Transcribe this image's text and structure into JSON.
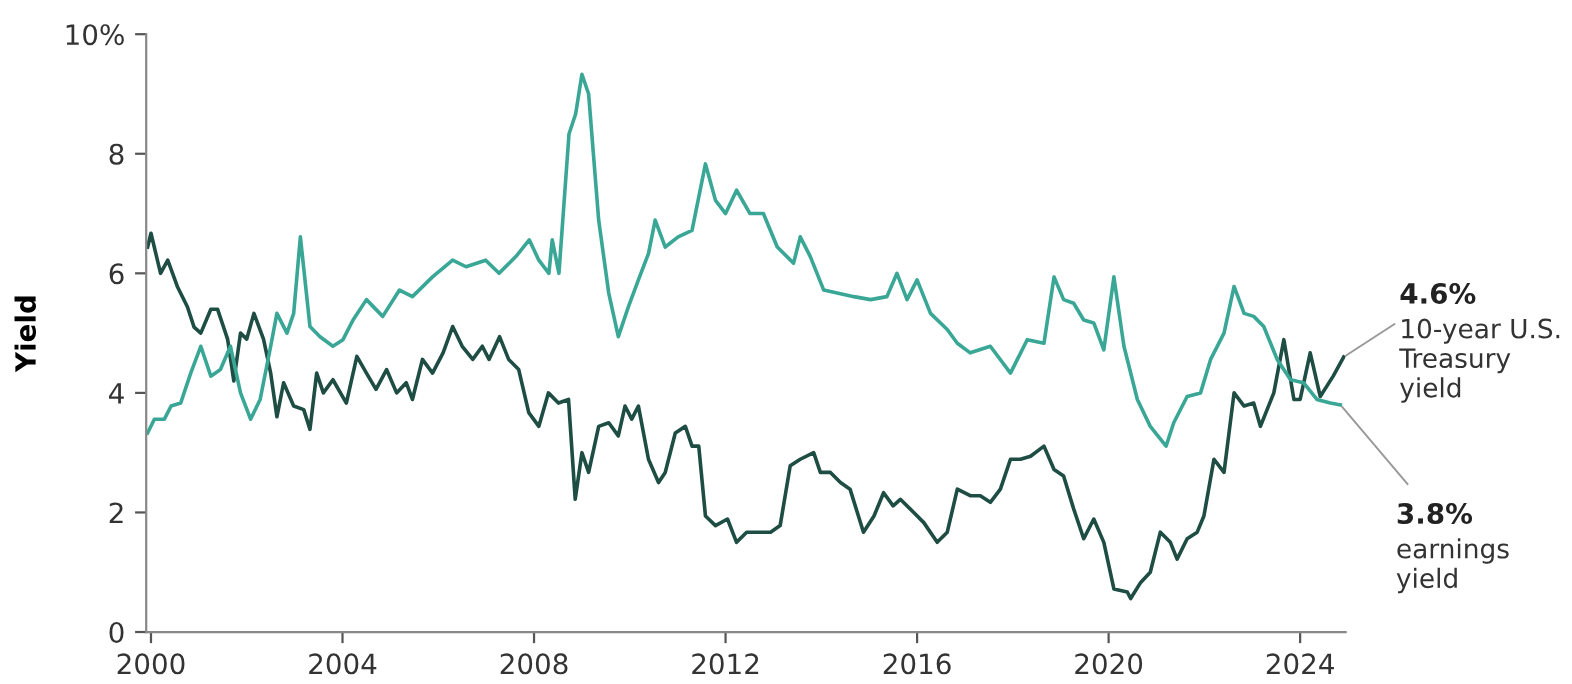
{
  "chart_data": {
    "type": "line",
    "ylabel": "Yield",
    "xlim": [
      1999.9,
      2024.95
    ],
    "ylim": [
      0,
      10
    ],
    "xticks": [
      2000,
      2004,
      2008,
      2012,
      2016,
      2020,
      2024
    ],
    "yticks": [
      0,
      2,
      4,
      6,
      8,
      {
        "value": 10,
        "label": "10%"
      }
    ],
    "grid": false,
    "legend": false,
    "marker": "none",
    "line_style": "solid",
    "annotations": [
      {
        "text": "4.6%",
        "x": 2024.91,
        "y": 4.6
      },
      {
        "text": "3.8%",
        "x": 2024.84,
        "y": 3.8
      }
    ],
    "series": [
      {
        "name": "10-year U.S. Treasury yield",
        "color": "#1e4d44",
        "x": [
          1999.93,
          2000.0,
          2000.2,
          2000.35,
          2000.55,
          2000.76,
          2000.9,
          2001.04,
          2001.25,
          2001.39,
          2001.6,
          2001.73,
          2001.87,
          2002.0,
          2002.15,
          2002.35,
          2002.5,
          2002.63,
          2002.77,
          2002.98,
          2003.19,
          2003.32,
          2003.46,
          2003.6,
          2003.8,
          2004.08,
          2004.3,
          2004.5,
          2004.7,
          2004.92,
          2005.13,
          2005.33,
          2005.46,
          2005.67,
          2005.88,
          2006.1,
          2006.3,
          2006.5,
          2006.72,
          2006.92,
          2007.06,
          2007.28,
          2007.47,
          2007.68,
          2007.89,
          2008.1,
          2008.3,
          2008.51,
          2008.72,
          2008.86,
          2009.0,
          2009.14,
          2009.35,
          2009.56,
          2009.76,
          2009.9,
          2010.04,
          2010.18,
          2010.39,
          2010.6,
          2010.74,
          2010.95,
          2011.16,
          2011.3,
          2011.44,
          2011.58,
          2011.79,
          2012.04,
          2012.23,
          2012.44,
          2012.72,
          2012.94,
          2013.14,
          2013.35,
          2013.56,
          2013.84,
          2013.98,
          2014.19,
          2014.4,
          2014.6,
          2014.88,
          2015.1,
          2015.3,
          2015.5,
          2015.65,
          2015.93,
          2016.14,
          2016.42,
          2016.63,
          2016.84,
          2017.11,
          2017.32,
          2017.53,
          2017.74,
          2017.95,
          2018.16,
          2018.37,
          2018.65,
          2018.86,
          2019.06,
          2019.27,
          2019.48,
          2019.69,
          2019.9,
          2020.11,
          2020.39,
          2020.46,
          2020.67,
          2020.87,
          2021.08,
          2021.29,
          2021.43,
          2021.64,
          2021.85,
          2021.99,
          2022.2,
          2022.41,
          2022.62,
          2022.83,
          2023.03,
          2023.17,
          2023.45,
          2023.66,
          2023.87,
          2024.0,
          2024.21,
          2024.42,
          2024.69,
          2024.91
        ],
        "values": [
          6.44,
          6.67,
          6.0,
          6.22,
          5.78,
          5.44,
          5.1,
          5.0,
          5.4,
          5.4,
          4.9,
          4.2,
          5.0,
          4.9,
          5.33,
          4.9,
          4.33,
          3.6,
          4.17,
          3.78,
          3.72,
          3.39,
          4.33,
          4.0,
          4.22,
          3.83,
          4.61,
          4.33,
          4.06,
          4.39,
          4.0,
          4.17,
          3.89,
          4.56,
          4.33,
          4.67,
          5.11,
          4.78,
          4.56,
          4.78,
          4.56,
          4.94,
          4.56,
          4.39,
          3.67,
          3.44,
          4.0,
          3.83,
          3.89,
          2.22,
          3.0,
          2.67,
          3.44,
          3.5,
          3.28,
          3.78,
          3.56,
          3.78,
          2.89,
          2.5,
          2.67,
          3.33,
          3.44,
          3.11,
          3.11,
          1.94,
          1.78,
          1.89,
          1.5,
          1.67,
          1.67,
          1.67,
          1.78,
          2.78,
          2.89,
          3.0,
          2.67,
          2.67,
          2.5,
          2.39,
          1.67,
          1.94,
          2.33,
          2.11,
          2.22,
          2.0,
          1.83,
          1.5,
          1.67,
          2.39,
          2.28,
          2.28,
          2.17,
          2.39,
          2.89,
          2.89,
          2.94,
          3.11,
          2.72,
          2.61,
          2.06,
          1.56,
          1.89,
          1.5,
          0.72,
          0.67,
          0.56,
          0.83,
          1.0,
          1.67,
          1.5,
          1.22,
          1.56,
          1.67,
          1.94,
          2.89,
          2.67,
          4.0,
          3.78,
          3.83,
          3.44,
          4.0,
          4.89,
          3.89,
          3.89,
          4.67,
          3.94,
          4.28,
          4.6
        ]
      },
      {
        "name": "earnings yield",
        "color": "#3aa796",
        "x": [
          1999.93,
          2000.07,
          2000.28,
          2000.42,
          2000.62,
          2000.83,
          2001.04,
          2001.25,
          2001.45,
          2001.66,
          2001.87,
          2002.08,
          2002.28,
          2002.5,
          2002.63,
          2002.84,
          2002.98,
          2003.12,
          2003.32,
          2003.53,
          2003.8,
          2004.01,
          2004.22,
          2004.5,
          2004.84,
          2005.19,
          2005.46,
          2005.88,
          2006.3,
          2006.58,
          2006.99,
          2007.27,
          2007.62,
          2007.9,
          2008.1,
          2008.31,
          2008.38,
          2008.52,
          2008.73,
          2008.87,
          2009.0,
          2009.14,
          2009.35,
          2009.56,
          2009.76,
          2009.97,
          2010.18,
          2010.39,
          2010.53,
          2010.74,
          2011.01,
          2011.3,
          2011.58,
          2011.79,
          2012.0,
          2012.23,
          2012.51,
          2012.79,
          2013.08,
          2013.42,
          2013.56,
          2013.77,
          2014.05,
          2014.33,
          2014.68,
          2015.03,
          2015.37,
          2015.58,
          2015.79,
          2016.0,
          2016.28,
          2016.63,
          2016.84,
          2017.11,
          2017.53,
          2017.95,
          2018.3,
          2018.65,
          2018.86,
          2019.06,
          2019.27,
          2019.48,
          2019.69,
          2019.9,
          2020.11,
          2020.32,
          2020.6,
          2020.87,
          2021.2,
          2021.36,
          2021.64,
          2021.92,
          2022.13,
          2022.41,
          2022.62,
          2022.83,
          2023.03,
          2023.24,
          2023.52,
          2023.8,
          2024.07,
          2024.35,
          2024.63,
          2024.84
        ],
        "values": [
          3.33,
          3.56,
          3.56,
          3.78,
          3.83,
          4.33,
          4.78,
          4.28,
          4.39,
          4.78,
          4.0,
          3.56,
          3.89,
          4.78,
          5.33,
          5.0,
          5.33,
          6.61,
          5.11,
          4.94,
          4.78,
          4.89,
          5.22,
          5.56,
          5.28,
          5.72,
          5.61,
          5.94,
          6.22,
          6.11,
          6.22,
          6.0,
          6.28,
          6.56,
          6.22,
          6.0,
          6.56,
          6.0,
          8.33,
          8.67,
          9.33,
          9.0,
          6.89,
          5.67,
          4.94,
          5.44,
          5.89,
          6.33,
          6.89,
          6.44,
          6.61,
          6.72,
          7.83,
          7.22,
          7.0,
          7.39,
          7.0,
          7.0,
          6.44,
          6.17,
          6.61,
          6.28,
          5.72,
          5.67,
          5.61,
          5.56,
          5.61,
          6.0,
          5.56,
          5.89,
          5.33,
          5.06,
          4.83,
          4.67,
          4.78,
          4.33,
          4.89,
          4.83,
          5.94,
          5.56,
          5.5,
          5.22,
          5.17,
          4.72,
          5.94,
          4.78,
          3.89,
          3.44,
          3.11,
          3.5,
          3.94,
          4.0,
          4.56,
          5.0,
          5.78,
          5.33,
          5.28,
          5.11,
          4.56,
          4.22,
          4.17,
          3.89,
          3.83,
          3.8
        ]
      }
    ]
  }
}
